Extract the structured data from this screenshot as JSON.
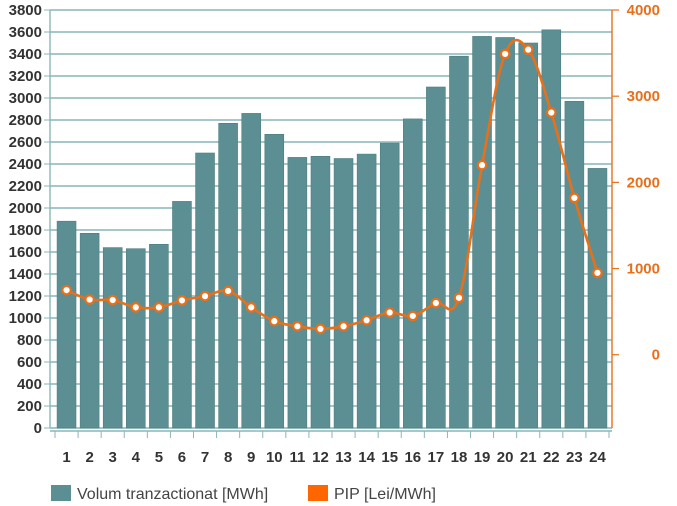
{
  "chart_data": {
    "type": "bar",
    "title": "",
    "categories": [
      "1",
      "2",
      "3",
      "4",
      "5",
      "6",
      "7",
      "8",
      "9",
      "10",
      "11",
      "12",
      "13",
      "14",
      "15",
      "16",
      "17",
      "18",
      "19",
      "20",
      "21",
      "22",
      "23",
      "24"
    ],
    "series": [
      {
        "name": "Volum tranzactionat [MWh]",
        "type": "bar",
        "axis": "left",
        "color": "#5b8f93",
        "values": [
          1880,
          1770,
          1640,
          1630,
          1670,
          2060,
          2500,
          2770,
          2860,
          2670,
          2460,
          2470,
          2450,
          2490,
          2590,
          2810,
          3100,
          3380,
          3560,
          3550,
          3500,
          3620,
          2970,
          2360
        ]
      },
      {
        "name": "PIP [Lei/MWh]",
        "type": "line",
        "axis": "right",
        "color": "#e8701a",
        "values": [
          750,
          640,
          635,
          550,
          550,
          630,
          680,
          740,
          550,
          390,
          330,
          300,
          330,
          400,
          490,
          450,
          600,
          660,
          2200,
          3490,
          3540,
          2810,
          1820,
          950
        ]
      }
    ],
    "y_left": {
      "min": 0,
      "max": 3800,
      "ticks": [
        0,
        200,
        400,
        600,
        800,
        1000,
        1200,
        1400,
        1600,
        1800,
        2000,
        2200,
        2400,
        2600,
        2800,
        3000,
        3200,
        3400,
        3600,
        3800
      ]
    },
    "y_right": {
      "min": -850,
      "max": 4000,
      "ticks": [
        0,
        1000,
        2000,
        3000,
        4000
      ]
    },
    "grid": true,
    "legend_position": "bottom-left"
  }
}
